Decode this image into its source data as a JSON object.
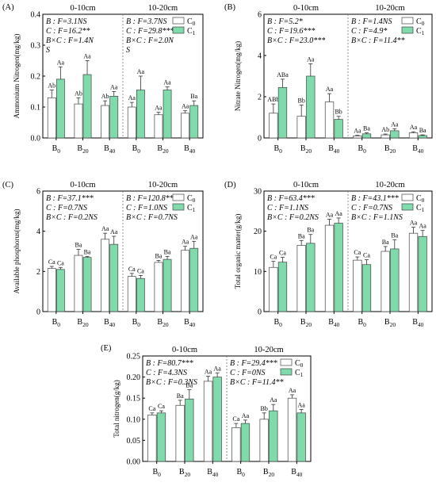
{
  "colors": {
    "c0": "#ffffff",
    "c1": "#7fdba9",
    "stroke": "#444444"
  },
  "chart_data": [
    {
      "type": "bar",
      "panel": "(A)",
      "ylabel": "Ammonium Nitrogen(mg/kg)",
      "ylim": [
        0,
        0.4
      ],
      "yticks": [
        "0.0",
        "0.1",
        "0.2",
        "0.3",
        "0.4"
      ],
      "ytick_values": [
        0,
        0.1,
        0.2,
        0.3,
        0.4
      ],
      "groups": [
        "0-10cm",
        "10-20cm"
      ],
      "categories": [
        "B0",
        "B20",
        "B40"
      ],
      "series": [
        {
          "name": "C0",
          "values": [
            [
              0.13,
              0.11,
              0.105
            ],
            [
              0.1,
              0.075,
              0.08
            ]
          ],
          "errors": [
            [
              0.025,
              0.02,
              0.015
            ],
            [
              0.015,
              0.008,
              0.008
            ]
          ],
          "labels": [
            [
              "Ab",
              "Ab",
              "Ab"
            ],
            [
              "Aa",
              "Aa",
              "Aa"
            ]
          ]
        },
        {
          "name": "C1",
          "values": [
            [
              0.19,
              0.205,
              0.135
            ],
            [
              0.155,
              0.155,
              0.105
            ]
          ],
          "errors": [
            [
              0.04,
              0.045,
              0.015
            ],
            [
              0.045,
              0.01,
              0.015
            ]
          ],
          "labels": [
            [
              "Aa",
              "Aa",
              "Aa"
            ],
            [
              "Aa",
              "Aa",
              "Ba"
            ]
          ]
        }
      ],
      "stats": [
        [
          "B : F=3.1NS",
          "C : F=16.2**",
          "B×C : F=1.4N",
          "S"
        ],
        [
          "B : F=3.7NS",
          "C : F=29.8***",
          "B×C : F=2.0N",
          "S"
        ]
      ],
      "legend": [
        "C",
        "C"
      ],
      "legend_sub": [
        "0",
        "1"
      ]
    },
    {
      "type": "bar",
      "panel": "(B)",
      "ylabel": "Nitrate Nitrogen(mg/kg)",
      "ylim": [
        0,
        6
      ],
      "yticks": [
        "0",
        "2",
        "4",
        "6"
      ],
      "ytick_values": [
        0,
        2,
        4,
        6
      ],
      "groups": [
        "0-10cm",
        "10-20cm"
      ],
      "categories": [
        "B0",
        "B20",
        "B40"
      ],
      "series": [
        {
          "name": "C0",
          "values": [
            [
              1.2,
              1.05,
              1.75
            ],
            [
              0.1,
              0.15,
              0.25
            ]
          ],
          "errors": [
            [
              0.45,
              0.55,
              0.4
            ],
            [
              0.03,
              0.04,
              0.05
            ]
          ],
          "labels": [
            [
              "ABb",
              "Bb",
              "Aa"
            ],
            [
              "Aa",
              "Ab",
              "Aa"
            ]
          ]
        },
        {
          "name": "C1",
          "values": [
            [
              2.45,
              3.0,
              0.9
            ],
            [
              0.2,
              0.35,
              0.12
            ]
          ],
          "errors": [
            [
              0.4,
              0.6,
              0.15
            ],
            [
              0.05,
              0.1,
              0.03
            ]
          ],
          "labels": [
            [
              "ABa",
              "Aa",
              "Bb"
            ],
            [
              "Ba",
              "Aa",
              "Ba"
            ]
          ]
        }
      ],
      "stats": [
        [
          "B : F=5.2*",
          "C : F=19.6***",
          "B×C : F=23.0***"
        ],
        [
          "B : F=1.4NS",
          "C : F=4.9*",
          "B×C : F=11.4**"
        ]
      ],
      "legend": [
        "C",
        "C"
      ],
      "legend_sub": [
        "0",
        "1"
      ]
    },
    {
      "type": "bar",
      "panel": "(C)",
      "ylabel": "Available phosphorus(mg/kg)",
      "ylim": [
        0,
        6
      ],
      "yticks": [
        "0",
        "2",
        "4",
        "6"
      ],
      "ytick_values": [
        0,
        2,
        4,
        6
      ],
      "groups": [
        "0-10cm",
        "10-20cm"
      ],
      "categories": [
        "B0",
        "B20",
        "B40"
      ],
      "series": [
        {
          "name": "C0",
          "values": [
            [
              2.15,
              2.8,
              3.6
            ],
            [
              1.75,
              2.45,
              3.05
            ]
          ],
          "errors": [
            [
              0.1,
              0.3,
              0.3
            ],
            [
              0.15,
              0.1,
              0.2
            ]
          ],
          "labels": [
            [
              "Ca",
              "Ba",
              "Aa"
            ],
            [
              "Ca",
              "Ba",
              "Aa"
            ]
          ]
        },
        {
          "name": "C1",
          "values": [
            [
              2.1,
              2.7,
              3.35
            ],
            [
              1.65,
              2.6,
              3.15
            ]
          ],
          "errors": [
            [
              0.1,
              0.05,
              0.4
            ],
            [
              0.15,
              0.15,
              0.35
            ]
          ],
          "labels": [
            [
              "Ca",
              "Ba",
              "Aa"
            ],
            [
              "Ca",
              "Ba",
              "Aa"
            ]
          ]
        }
      ],
      "stats": [
        [
          "B : F=37.1***",
          "C : F=0.7NS",
          "B×C : F=0.2NS"
        ],
        [
          "B : F=120.8***",
          "C : F=1.0NS",
          "B×C : F=0.7NS"
        ]
      ],
      "legend": [
        "C",
        "C"
      ],
      "legend_sub": [
        "0",
        "1"
      ]
    },
    {
      "type": "bar",
      "panel": "(D)",
      "ylabel": "Total organic matter(g/kg)",
      "ylim": [
        0,
        30
      ],
      "yticks": [
        "0",
        "10",
        "20",
        "30"
      ],
      "ytick_values": [
        0,
        10,
        20,
        30
      ],
      "groups": [
        "0-10cm",
        "10-20cm"
      ],
      "categories": [
        "B0",
        "B20",
        "B40"
      ],
      "series": [
        {
          "name": "C0",
          "values": [
            [
              11.0,
              16.5,
              21.5
            ],
            [
              12.8,
              15.0,
              19.5
            ]
          ],
          "errors": [
            [
              1.5,
              1.2,
              1.5
            ],
            [
              0.8,
              1.2,
              1.5
            ]
          ],
          "labels": [
            [
              "Ca",
              "Ba",
              "Aa"
            ],
            [
              "Ca",
              "Ba",
              "Aa"
            ]
          ]
        },
        {
          "name": "C1",
          "values": [
            [
              12.3,
              17.0,
              22.0
            ],
            [
              11.7,
              15.6,
              18.7
            ]
          ],
          "errors": [
            [
              1.2,
              2.2,
              1.3
            ],
            [
              1.2,
              2.3,
              1.5
            ]
          ],
          "labels": [
            [
              "Ca",
              "Ba",
              "Aa"
            ],
            [
              "Ca",
              "Ba",
              "Aa"
            ]
          ]
        }
      ],
      "stats": [
        [
          "B : F=63.4***",
          "C : F=1.1NS",
          "B×C : F=0.2NS"
        ],
        [
          "B : F=43.1***",
          "C : F=0.7NS",
          "B×C : F=1.1NS"
        ]
      ],
      "legend": [
        "C",
        "C"
      ],
      "legend_sub": [
        "0",
        "1"
      ]
    },
    {
      "type": "bar",
      "panel": "(E)",
      "ylabel": "Total nitrogen(g/kg)",
      "ylim": [
        0,
        0.25
      ],
      "yticks": [
        "0.00",
        "0.05",
        "0.10",
        "0.15",
        "0.20",
        "0.25"
      ],
      "ytick_values": [
        0,
        0.05,
        0.1,
        0.15,
        0.2,
        0.25
      ],
      "groups": [
        "0-10cm",
        "10-20cm"
      ],
      "categories": [
        "B0",
        "B20",
        "B40"
      ],
      "series": [
        {
          "name": "C0",
          "values": [
            [
              0.11,
              0.133,
              0.19
            ],
            [
              0.08,
              0.1,
              0.15
            ]
          ],
          "errors": [
            [
              0.005,
              0.012,
              0.012
            ],
            [
              0.01,
              0.015,
              0.008
            ]
          ],
          "labels": [
            [
              "Ca",
              "Ba",
              "Aa"
            ],
            [
              "Ca",
              "Bb",
              "Aa"
            ]
          ]
        },
        {
          "name": "C1",
          "values": [
            [
              0.115,
              0.148,
              0.2
            ],
            [
              0.09,
              0.12,
              0.115
            ]
          ],
          "errors": [
            [
              0.005,
              0.022,
              0.01
            ],
            [
              0.008,
              0.015,
              0.008
            ]
          ],
          "labels": [
            [
              "Ca",
              "Ba",
              "Aa"
            ],
            [
              "Aa",
              "Aa",
              "Aa"
            ]
          ]
        }
      ],
      "stats": [
        [
          "B : F=80.7***",
          "C : F=4.3NS",
          "B×C : F=0.3NS"
        ],
        [
          "B : F=29.4***",
          "C : F=0NS",
          "B×C : F=11.4**"
        ]
      ],
      "legend": [
        "C",
        "C"
      ],
      "legend_sub": [
        "0",
        "1"
      ]
    }
  ]
}
